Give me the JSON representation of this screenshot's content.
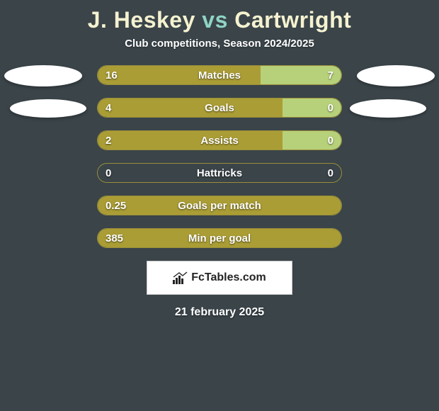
{
  "background_color": "#3a4449",
  "title": {
    "player1": "J. Heskey",
    "vs": "vs",
    "player2": "Cartwright",
    "color_players": "#f5f2d0",
    "color_vs": "#8fd4c4",
    "fontsize": 32
  },
  "subtitle": {
    "text": "Club competitions, Season 2024/2025",
    "color": "#ffffff",
    "fontsize": 15
  },
  "bar_style": {
    "track_width": 346,
    "track_height": 28,
    "border_color": "#9a8e3a",
    "border_radius": 14,
    "left_color": "#aa9d35",
    "right_color": "#b7d17a",
    "label_color": "#ffffff",
    "label_fontsize": 15
  },
  "stats": [
    {
      "label": "Matches",
      "left_val": "16",
      "right_val": "7",
      "left_pct": 67,
      "right_pct": 33,
      "full_left": false
    },
    {
      "label": "Goals",
      "left_val": "4",
      "right_val": "0",
      "left_pct": 76,
      "right_pct": 24,
      "full_left": false
    },
    {
      "label": "Assists",
      "left_val": "2",
      "right_val": "0",
      "left_pct": 76,
      "right_pct": 24,
      "full_left": false
    },
    {
      "label": "Hattricks",
      "left_val": "0",
      "right_val": "0",
      "left_pct": 0,
      "right_pct": 0,
      "full_left": false
    },
    {
      "label": "Goals per match",
      "left_val": "0.25",
      "right_val": "",
      "left_pct": 100,
      "right_pct": 0,
      "full_left": true
    },
    {
      "label": "Min per goal",
      "left_val": "385",
      "right_val": "",
      "left_pct": 100,
      "right_pct": 0,
      "full_left": true
    }
  ],
  "avatars": {
    "fill": "#ffffff"
  },
  "logo": {
    "text": "FcTables.com",
    "text_color": "#242424",
    "bg": "#ffffff",
    "icon_color": "#242424"
  },
  "footer_date": "21 february 2025"
}
